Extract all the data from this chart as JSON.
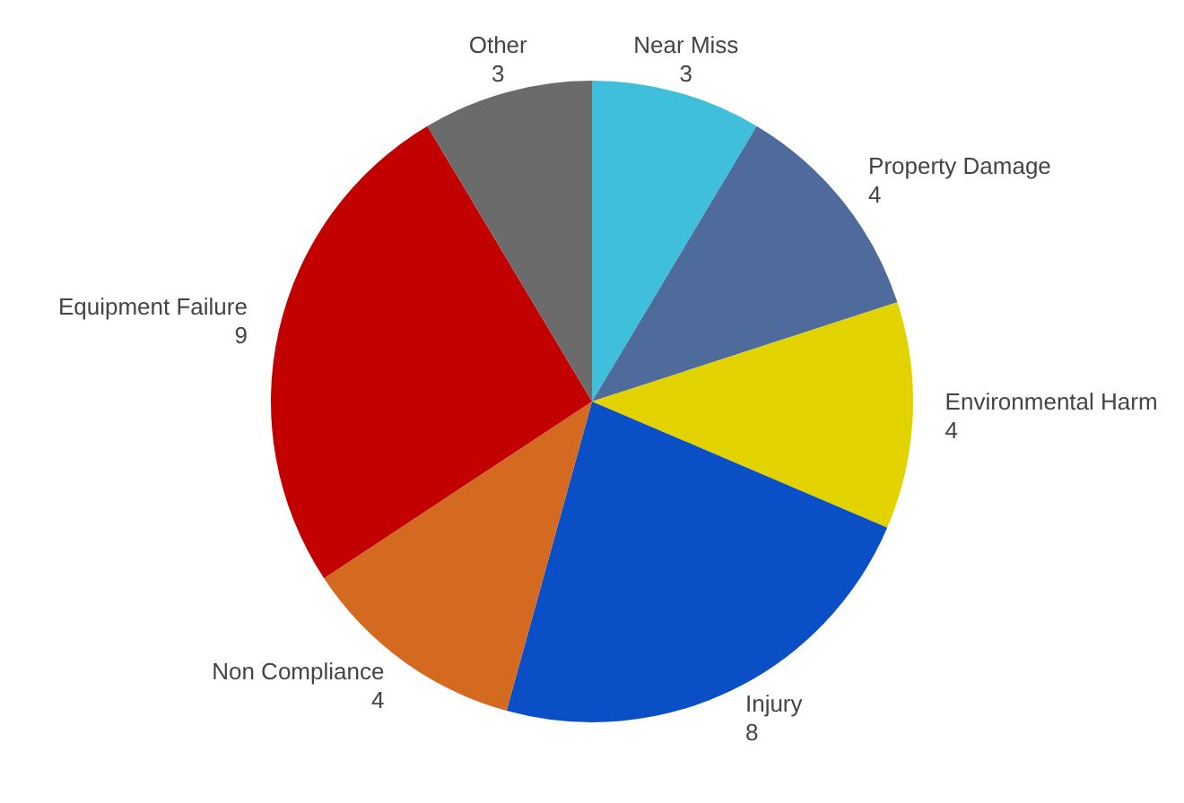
{
  "chart_data": {
    "type": "pie",
    "categories": [
      "Near Miss",
      "Property Damage",
      "Environmental Harm",
      "Injury",
      "Non Compliance",
      "Equipment Failure",
      "Other"
    ],
    "values": [
      3,
      4,
      4,
      8,
      4,
      9,
      3
    ],
    "colors": [
      "#3fbfdc",
      "#4f6b9b",
      "#e2d300",
      "#0a4fc6",
      "#d46a1f",
      "#c20000",
      "#6b6b6b"
    ],
    "data_labels": true,
    "legend": false
  }
}
